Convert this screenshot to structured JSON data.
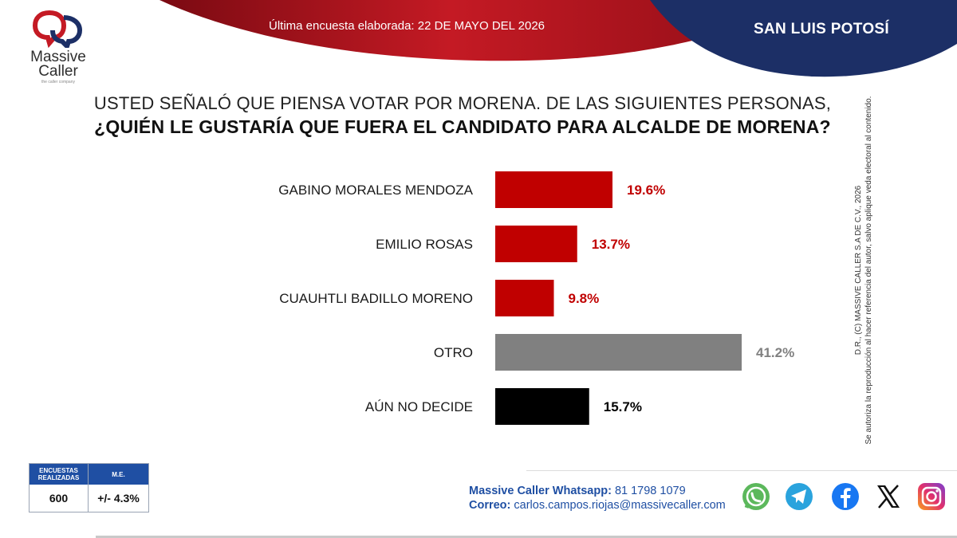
{
  "header": {
    "date_text": "Última encuesta elaborada: 22 DE MAYO DEL 2026",
    "region": "SAN LUIS POTOSÍ",
    "colors": {
      "red": "#b3121f",
      "navy": "#1c2f66"
    }
  },
  "logo": {
    "line1": "Massive",
    "line2": "Caller",
    "tagline": "the caller company"
  },
  "question": {
    "line1": "USTED SEÑALÓ QUE PIENSA VOTAR POR MORENA. DE LAS SIGUIENTES PERSONAS,",
    "line2": "¿QUIÉN LE GUSTARÍA QUE FUERA EL CANDIDATO PARA ALCALDE DE MORENA?"
  },
  "chart_data": {
    "type": "bar",
    "orientation": "horizontal",
    "categories": [
      "GABINO MORALES MENDOZA",
      "EMILIO ROSAS",
      "CUAUHTLI BADILLO MORENO",
      "OTRO",
      "AÚN NO DECIDE"
    ],
    "values": [
      19.6,
      13.7,
      9.8,
      41.2,
      15.7
    ],
    "value_labels": [
      "19.6%",
      "13.7%",
      "9.8%",
      "41.2%",
      "15.7%"
    ],
    "bar_colors": [
      "#c00000",
      "#c00000",
      "#c00000",
      "#808080",
      "#000000"
    ],
    "label_colors": [
      "#c00000",
      "#c00000",
      "#c00000",
      "#808080",
      "#000000"
    ],
    "xlim": [
      0,
      41.2
    ],
    "grid": false,
    "legend": "none"
  },
  "side_text": {
    "line1": "D.R., (C) MASSIVE CALLER S.A DE C.V., 2026",
    "line2": "Se autoriza la reproducción al hacer referencia del autor, salvo aplique veda electoral al contenido."
  },
  "sample": {
    "h1": "ENCUESTAS REALIZADAS",
    "h2": "M.E.",
    "v1": "600",
    "v2": "+/- 4.3%"
  },
  "footer": {
    "whatsapp_label": "Massive Caller Whatsapp:",
    "whatsapp_number": "81 1798 1079",
    "email_label": "Correo:",
    "email": "carlos.campos.riojas@massivecaller.com",
    "social_icons": [
      "whatsapp-icon",
      "telegram-icon",
      "facebook-icon",
      "x-icon",
      "instagram-icon"
    ]
  }
}
